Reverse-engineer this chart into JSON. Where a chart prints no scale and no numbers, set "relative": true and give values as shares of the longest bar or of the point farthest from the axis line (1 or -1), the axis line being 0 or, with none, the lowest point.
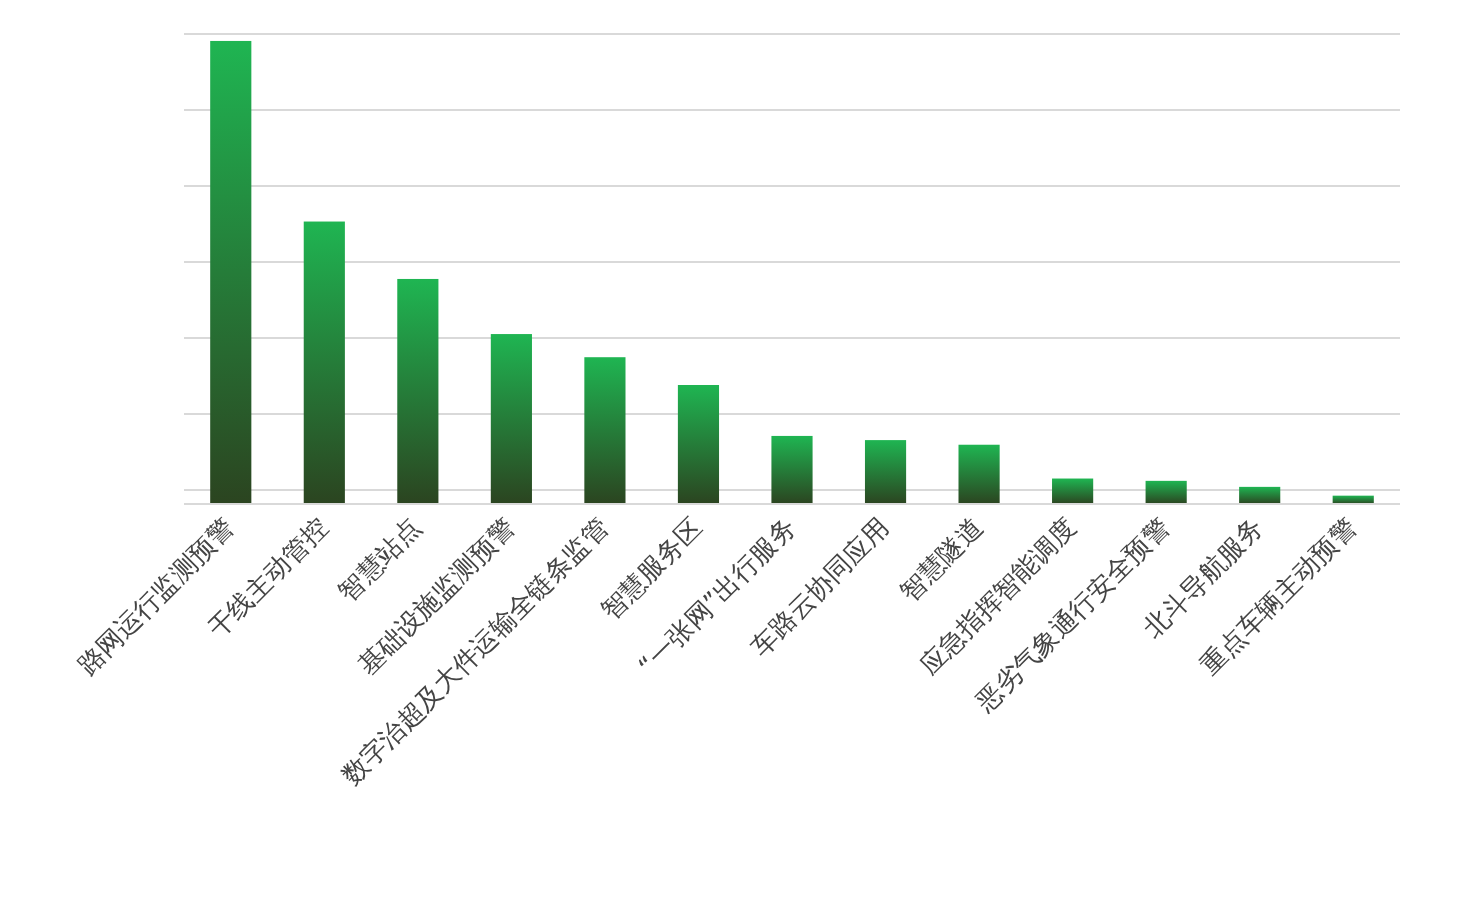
{
  "chart_data": {
    "type": "bar",
    "relative": true,
    "grid": "y",
    "categories": [
      "路网运行监测预警",
      "干线主动管控",
      "智慧站点",
      "基础设施监测预警",
      "数字治超及大件运输全链条监管",
      "智慧服务区",
      "“一张网”出行服务",
      "车路云协同应用",
      "智慧隧道",
      "应急指挥智能调度",
      "恶劣气象通行安全预警",
      "北斗导航服务",
      "重点车辆主动预警"
    ],
    "values": [
      1,
      0.61,
      0.486,
      0.367,
      0.317,
      0.257,
      0.147,
      0.138,
      0.128,
      0.055,
      0.05,
      0.037,
      0.018
    ],
    "color": "#1fb552"
  }
}
